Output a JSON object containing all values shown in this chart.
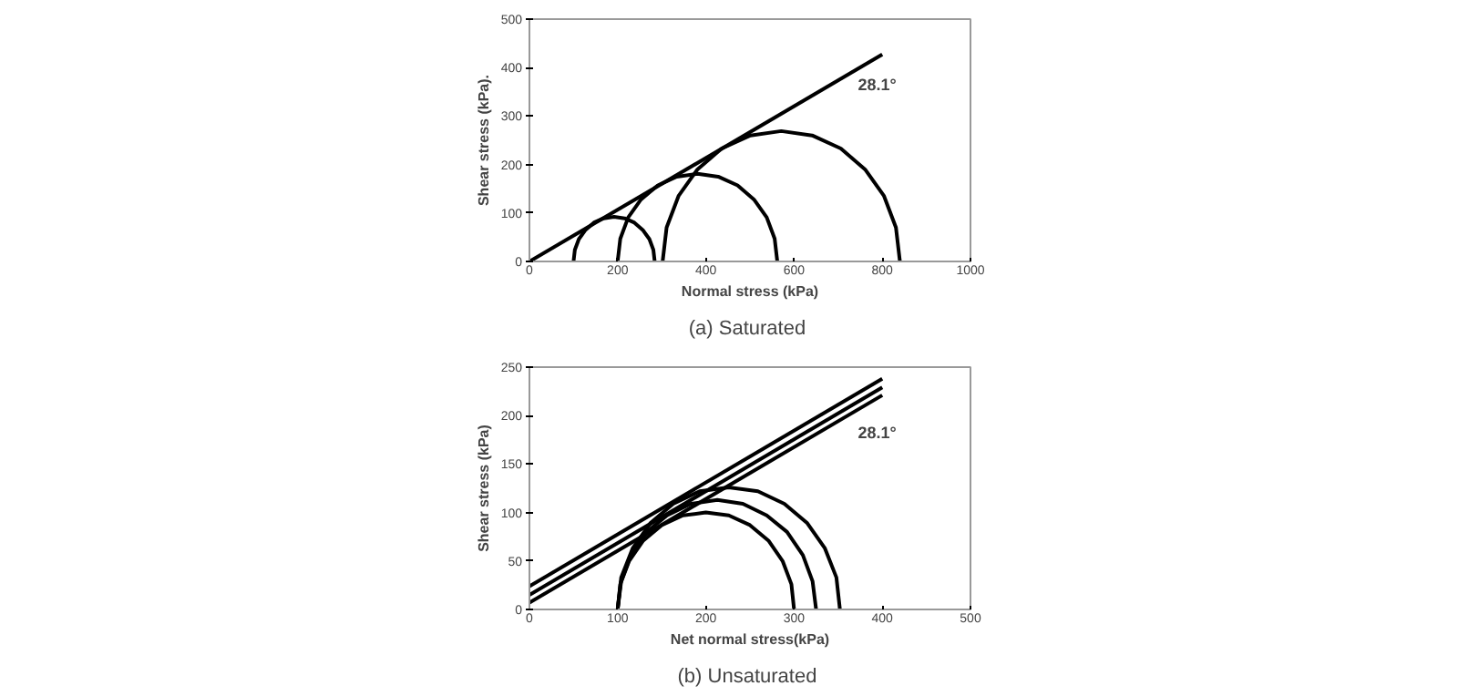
{
  "chart_data": [
    {
      "type": "line",
      "title": "(a)  Saturated",
      "xlabel": "Normal stress (kPa)",
      "ylabel": "Shear stress (kPa).",
      "xlim": [
        0,
        1000
      ],
      "ylim": [
        0,
        500
      ],
      "xticks": [
        0,
        200,
        400,
        600,
        800,
        1000
      ],
      "yticks": [
        0,
        100,
        200,
        300,
        400,
        500
      ],
      "grid": false,
      "line_style": "solid",
      "annotations": [
        "28.1°"
      ],
      "series": [
        {
          "color": "#000000",
          "x": [
            0,
            800
          ],
          "values": [
            0,
            427
          ]
        },
        {
          "color": "#000000",
          "x": [
            284,
            281,
            272,
            257,
            238,
            216,
            192,
            168,
            146,
            127,
            112,
            103,
            100
          ],
          "values": [
            0,
            24,
            46,
            65,
            80,
            89,
            92,
            89,
            80,
            65,
            46,
            24,
            0
          ]
        },
        {
          "color": "#000000",
          "x": [
            562,
            556,
            538,
            509,
            472,
            428,
            381,
            334,
            291,
            253,
            224,
            206,
            200
          ],
          "values": [
            0,
            47,
            91,
            128,
            157,
            175,
            181,
            175,
            157,
            128,
            91,
            47,
            0
          ]
        },
        {
          "color": "#000000",
          "x": [
            840,
            831,
            804,
            761,
            706,
            641,
            571,
            501,
            436,
            381,
            338,
            311,
            302
          ],
          "values": [
            0,
            70,
            135,
            190,
            233,
            260,
            269,
            260,
            233,
            190,
            135,
            70,
            0
          ]
        }
      ]
    },
    {
      "type": "line",
      "title": "(b)  Unsaturated",
      "xlabel": "Net normal stress(kPa)",
      "ylabel": "Shear stress (kPa)",
      "xlim": [
        0,
        500
      ],
      "ylim": [
        0,
        250
      ],
      "xticks": [
        0,
        100,
        200,
        300,
        400,
        500
      ],
      "yticks": [
        0,
        50,
        100,
        150,
        200,
        250
      ],
      "grid": false,
      "line_style": "solid",
      "annotations": [
        "28.1°"
      ],
      "series": [
        {
          "color": "#000000",
          "x": [
            0,
            400
          ],
          "values": [
            24,
            238
          ]
        },
        {
          "color": "#000000",
          "x": [
            0,
            400
          ],
          "values": [
            15,
            229
          ]
        },
        {
          "color": "#000000",
          "x": [
            0,
            400
          ],
          "values": [
            7,
            221
          ]
        },
        {
          "color": "#000000",
          "x": [
            300,
            297,
            287,
            271,
            250,
            226,
            200,
            174,
            150,
            129,
            113,
            103,
            100
          ],
          "values": [
            0,
            26,
            50,
            71,
            87,
            97,
            100,
            97,
            87,
            71,
            50,
            26,
            0
          ]
        },
        {
          "color": "#000000",
          "x": [
            325,
            321,
            310,
            292,
            269,
            242,
            213,
            183,
            156,
            133,
            115,
            104,
            100
          ],
          "values": [
            0,
            29,
            56,
            80,
            97,
            109,
            113,
            109,
            97,
            80,
            56,
            29,
            0
          ]
        },
        {
          "color": "#000000",
          "x": [
            352,
            348,
            335,
            315,
            289,
            259,
            226,
            193,
            163,
            137,
            117,
            104,
            100
          ],
          "values": [
            0,
            33,
            63,
            89,
            109,
            122,
            126,
            122,
            109,
            89,
            63,
            33,
            0
          ]
        }
      ]
    }
  ]
}
